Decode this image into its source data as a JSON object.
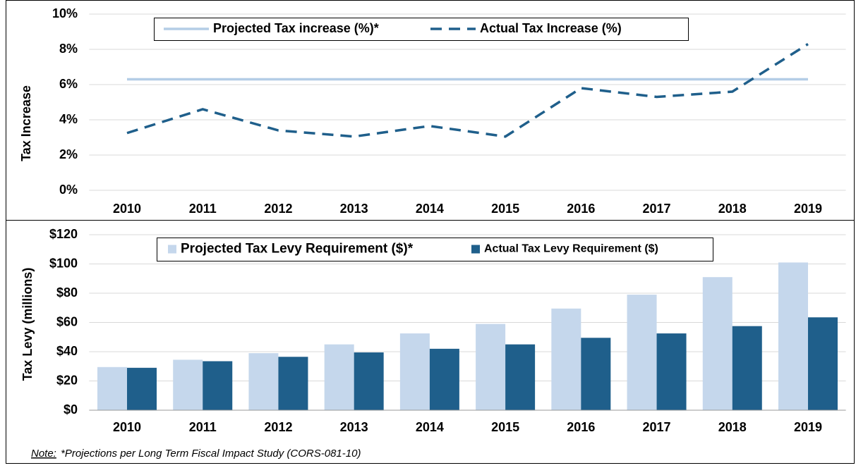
{
  "chart_data": [
    {
      "type": "line",
      "y_label": "Tax Increase",
      "categories": [
        "2010",
        "2011",
        "2012",
        "2013",
        "2014",
        "2015",
        "2016",
        "2017",
        "2018",
        "2019"
      ],
      "series": [
        {
          "name": "Projected Tax increase (%)*",
          "color": "#b4cde6",
          "dash": "solid",
          "values": [
            6.3,
            6.3,
            6.3,
            6.3,
            6.3,
            6.3,
            6.3,
            6.3,
            6.3,
            6.3
          ]
        },
        {
          "name": "Actual Tax Increase (%)",
          "color": "#1f5f8b",
          "dash": "dashed",
          "values": [
            3.25,
            4.6,
            3.4,
            3.05,
            3.65,
            3.05,
            5.8,
            5.3,
            5.6,
            8.3
          ]
        }
      ],
      "ylim": [
        0,
        10
      ],
      "yticks": [
        {
          "value": 0,
          "label": "0%"
        },
        {
          "value": 2,
          "label": "2%"
        },
        {
          "value": 4,
          "label": "4%"
        },
        {
          "value": 6,
          "label": "6%"
        },
        {
          "value": 8,
          "label": "8%"
        },
        {
          "value": 10,
          "label": "10%"
        }
      ],
      "grid": true
    },
    {
      "type": "bar",
      "y_label": "Tax Levy (millions)",
      "categories": [
        "2010",
        "2011",
        "2012",
        "2013",
        "2014",
        "2015",
        "2016",
        "2017",
        "2018",
        "2019"
      ],
      "series": [
        {
          "name": "Projected Tax Levy Requirement ($)*",
          "color": "#c5d7ec",
          "values": [
            29.5,
            34.5,
            39,
            45,
            52.5,
            59,
            69.5,
            79,
            91,
            101
          ]
        },
        {
          "name": "Actual Tax Levy Requirement ($)",
          "color": "#1f5f8b",
          "values": [
            29,
            33.5,
            36.5,
            39.5,
            42,
            45,
            49.5,
            52.5,
            57.5,
            63.5
          ]
        }
      ],
      "ylim": [
        0,
        120
      ],
      "yticks": [
        {
          "value": 0,
          "label": "$0"
        },
        {
          "value": 20,
          "label": "$20"
        },
        {
          "value": 40,
          "label": "$40"
        },
        {
          "value": 60,
          "label": "$60"
        },
        {
          "value": 80,
          "label": "$80"
        },
        {
          "value": 100,
          "label": "$100"
        },
        {
          "value": 120,
          "label": "$120"
        }
      ],
      "grid": true
    }
  ],
  "note": {
    "label": "Note:",
    "text": "*Projections per Long Term Fiscal Impact Study (CORS-081-10)"
  }
}
